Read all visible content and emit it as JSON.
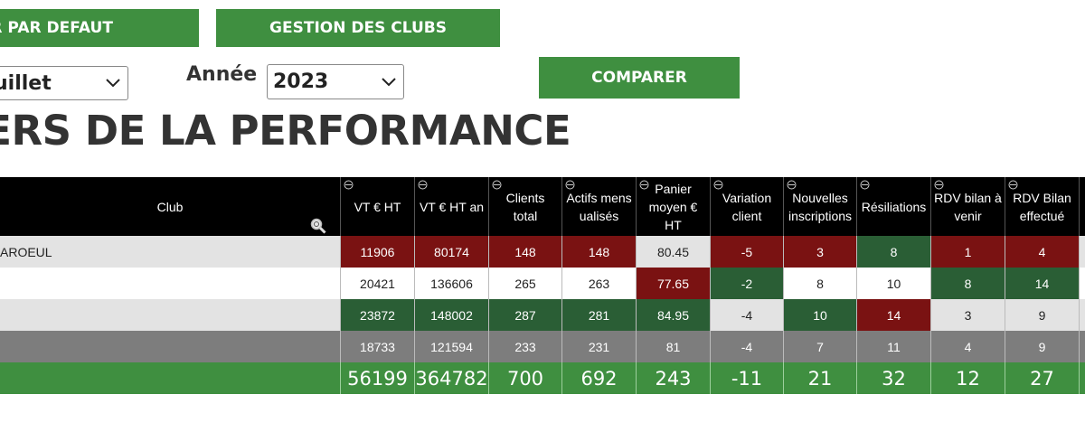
{
  "toolbar": {
    "default_button": "EUR PAR DEFAUT",
    "clubs_button": "GESTION DES CLUBS",
    "compare_button": "COMPARER"
  },
  "filters": {
    "month_value": "uillet",
    "year_label": "Année",
    "year_value": "2023"
  },
  "page_title": "IERS DE LA PERFORMANCE",
  "table": {
    "headers": [
      "Club",
      "VT € HT",
      "VT € HT an",
      "Clients total",
      "Actifs mensualisés",
      "Panier moyen € HT",
      "Variation client",
      "Nouvelles inscriptions",
      "Résiliations",
      "RDV bilan à venir",
      "RDV Bilan effectué"
    ],
    "rows": [
      {
        "club": "AROEUL",
        "values": [
          "11906",
          "80174",
          "148",
          "148",
          "80.45",
          "-5",
          "3",
          "8",
          "1",
          "4"
        ]
      },
      {
        "club": "",
        "values": [
          "20421",
          "136606",
          "265",
          "263",
          "77.65",
          "-2",
          "8",
          "10",
          "8",
          "14"
        ]
      },
      {
        "club": "",
        "values": [
          "23872",
          "148002",
          "287",
          "281",
          "84.95",
          "-4",
          "10",
          "14",
          "3",
          "9"
        ]
      },
      {
        "club": "",
        "values": [
          "18733",
          "121594",
          "233",
          "231",
          "81",
          "-4",
          "7",
          "11",
          "4",
          "9"
        ]
      }
    ],
    "totals": [
      "56199",
      "364782",
      "700",
      "692",
      "243",
      "-11",
      "21",
      "32",
      "12",
      "27"
    ]
  },
  "colors": {
    "accent_green": "#3f8f40",
    "highlight_red": "#7a1212",
    "highlight_green": "#2a5e35",
    "header_bg": "#000000"
  },
  "icons": [
    "chevron-down-icon",
    "zoom-icon",
    "collapse-toggle-icon"
  ]
}
